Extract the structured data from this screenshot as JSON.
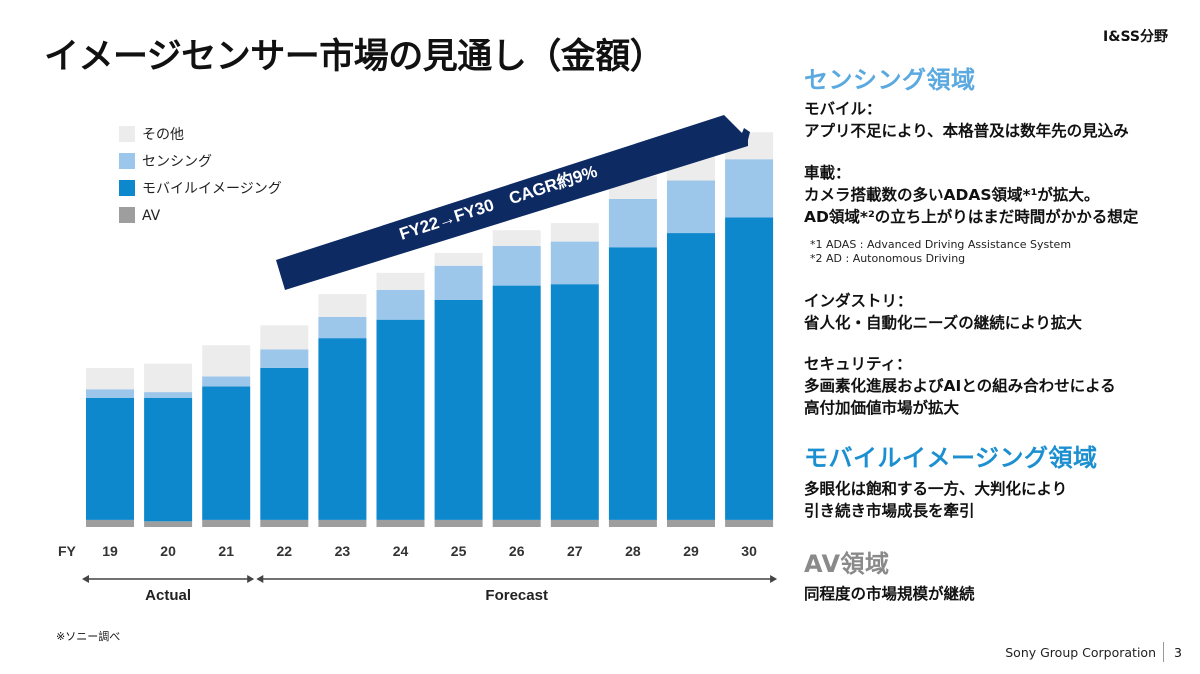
{
  "title": "イメージセンサー市場の見通し（金額）",
  "tag": "I&SS分野",
  "chart_data": {
    "type": "bar",
    "stacked": true,
    "x_prefix": "FY",
    "categories": [
      "19",
      "20",
      "21",
      "22",
      "23",
      "24",
      "25",
      "26",
      "27",
      "28",
      "29",
      "30"
    ],
    "series": [
      {
        "name": "AV",
        "color": "#9e9e9e",
        "values": [
          0.5,
          0.4,
          0.5,
          0.5,
          0.5,
          0.5,
          0.5,
          0.5,
          0.5,
          0.5,
          0.5,
          0.5
        ]
      },
      {
        "name": "モバイルイメージング",
        "color": "#0e88cc",
        "values": [
          8.6,
          8.7,
          9.4,
          10.7,
          12.8,
          14.1,
          15.5,
          16.5,
          16.6,
          19.2,
          20.2,
          21.3
        ]
      },
      {
        "name": "センシング",
        "color": "#9cc6ea",
        "values": [
          0.6,
          0.4,
          0.7,
          1.3,
          1.5,
          2.1,
          2.4,
          2.8,
          3.0,
          3.4,
          3.7,
          4.1
        ]
      },
      {
        "name": "その他",
        "color": "#ececec",
        "values": [
          1.5,
          2.0,
          2.2,
          1.7,
          1.6,
          1.2,
          0.9,
          1.1,
          1.3,
          1.6,
          1.8,
          1.9
        ]
      }
    ],
    "legend_order": [
      "その他",
      "センシング",
      "モバイルイメージング",
      "AV"
    ],
    "annotation": "FY22→FY30　CAGR約9%",
    "periods": [
      {
        "label": "Actual",
        "from": "19",
        "to": "21"
      },
      {
        "label": "Forecast",
        "from": "22",
        "to": "30"
      }
    ]
  },
  "right": {
    "sensing": {
      "heading": "センシング領域",
      "mobile_label": "モバイル：",
      "mobile_text": "アプリ不足により、本格普及は数年先の見込み",
      "auto_label": "車載：",
      "auto_text1": "カメラ搭載数の多いADAS領域*¹が拡大。",
      "auto_text2": "AD領域*²の立ち上がりはまだ時間がかかる想定",
      "note1": "*1 ADAS : Advanced Driving Assistance System",
      "note2": "*2 AD : Autonomous Driving",
      "industry_label": "インダストリ：",
      "industry_text": "省人化・自動化ニーズの継続により拡大",
      "security_label": "セキュリティ：",
      "security_text1": "多画素化進展およびAIとの組み合わせによる",
      "security_text2": "高付加価値市場が拡大"
    },
    "mobile_imaging": {
      "heading": "モバイルイメージング領域",
      "text1": "多眼化は飽和する一方、大判化により",
      "text2": "引き続き市場成長を牽引"
    },
    "av": {
      "heading": "AV領域",
      "text": "同程度の市場規模が継続"
    }
  },
  "footnote": "※ソニー調べ",
  "footer": {
    "company": "Sony Group Corporation",
    "page": "3"
  }
}
